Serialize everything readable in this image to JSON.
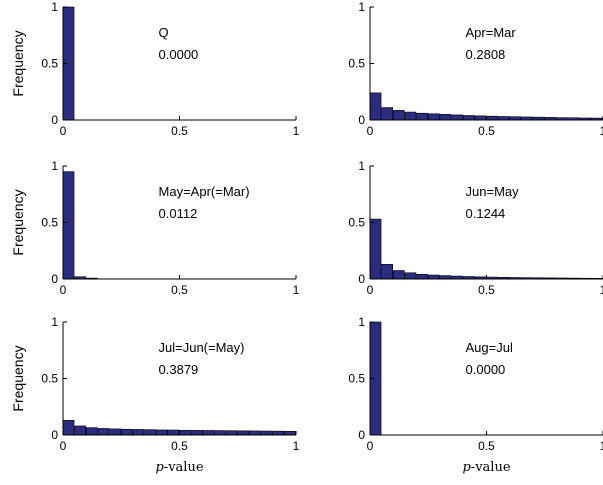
{
  "figure": {
    "ylabel": "Frequency",
    "xlabel_italic": "p",
    "xlabel_rest": "-value",
    "bar_color": "#2b2b80"
  },
  "chart_data": [
    {
      "type": "bar",
      "label": "Q",
      "value_text": "0.0000",
      "xlim": [
        0,
        1
      ],
      "ylim": [
        0,
        1
      ],
      "xticks": [
        "0",
        "0.5",
        "1"
      ],
      "yticks": [
        "0",
        "0.5",
        "1"
      ],
      "bin_width": 0.05,
      "values": [
        1.0,
        0,
        0,
        0,
        0,
        0,
        0,
        0,
        0,
        0,
        0,
        0,
        0,
        0,
        0,
        0,
        0,
        0,
        0,
        0
      ]
    },
    {
      "type": "bar",
      "label": "Apr=Mar",
      "value_text": "0.2808",
      "xlim": [
        0,
        1
      ],
      "ylim": [
        0,
        1
      ],
      "xticks": [
        "0",
        "0.5",
        "1"
      ],
      "yticks": [
        "0",
        "0.5",
        "1"
      ],
      "bin_width": 0.05,
      "values": [
        0.24,
        0.11,
        0.085,
        0.07,
        0.06,
        0.055,
        0.05,
        0.045,
        0.04,
        0.037,
        0.034,
        0.031,
        0.029,
        0.027,
        0.025,
        0.023,
        0.021,
        0.02,
        0.018,
        0.017
      ]
    },
    {
      "type": "bar",
      "label": "May=Apr(=Mar)",
      "value_text": "0.0112",
      "xlim": [
        0,
        1
      ],
      "ylim": [
        0,
        1
      ],
      "xticks": [
        "0",
        "0.5",
        "1"
      ],
      "yticks": [
        "0",
        "0.5",
        "1"
      ],
      "bin_width": 0.05,
      "values": [
        0.95,
        0.02,
        0.008,
        0.004,
        0.003,
        0.002,
        0.002,
        0.001,
        0.001,
        0.001,
        0.001,
        0.001,
        0.001,
        0.001,
        0.001,
        0.001,
        0.001,
        0.001,
        0.001,
        0.001
      ]
    },
    {
      "type": "bar",
      "label": "Jun=May",
      "value_text": "0.1244",
      "xlim": [
        0,
        1
      ],
      "ylim": [
        0,
        1
      ],
      "xticks": [
        "0",
        "0.5",
        "1"
      ],
      "yticks": [
        "0",
        "0.5",
        "1"
      ],
      "bin_width": 0.05,
      "values": [
        0.53,
        0.13,
        0.075,
        0.055,
        0.042,
        0.035,
        0.03,
        0.026,
        0.022,
        0.019,
        0.017,
        0.015,
        0.013,
        0.012,
        0.011,
        0.01,
        0.009,
        0.008,
        0.007,
        0.006
      ]
    },
    {
      "type": "bar",
      "label": "Jul=Jun(=May)",
      "value_text": "0.3879",
      "xlim": [
        0,
        1
      ],
      "ylim": [
        0,
        1
      ],
      "xticks": [
        "0",
        "0.5",
        "1"
      ],
      "yticks": [
        "0",
        "0.5",
        "1"
      ],
      "bin_width": 0.05,
      "values": [
        0.13,
        0.08,
        0.065,
        0.058,
        0.054,
        0.051,
        0.049,
        0.047,
        0.045,
        0.044,
        0.042,
        0.041,
        0.04,
        0.039,
        0.038,
        0.037,
        0.036,
        0.035,
        0.034,
        0.033
      ]
    },
    {
      "type": "bar",
      "label": "Aug=Jul",
      "value_text": "0.0000",
      "xlim": [
        0,
        1
      ],
      "ylim": [
        0,
        1
      ],
      "xticks": [
        "0",
        "0.5",
        "1"
      ],
      "yticks": [
        "0",
        "0.5",
        "1"
      ],
      "bin_width": 0.05,
      "values": [
        1.0,
        0,
        0,
        0,
        0,
        0,
        0,
        0,
        0,
        0,
        0,
        0,
        0,
        0,
        0,
        0,
        0,
        0,
        0,
        0
      ]
    }
  ]
}
